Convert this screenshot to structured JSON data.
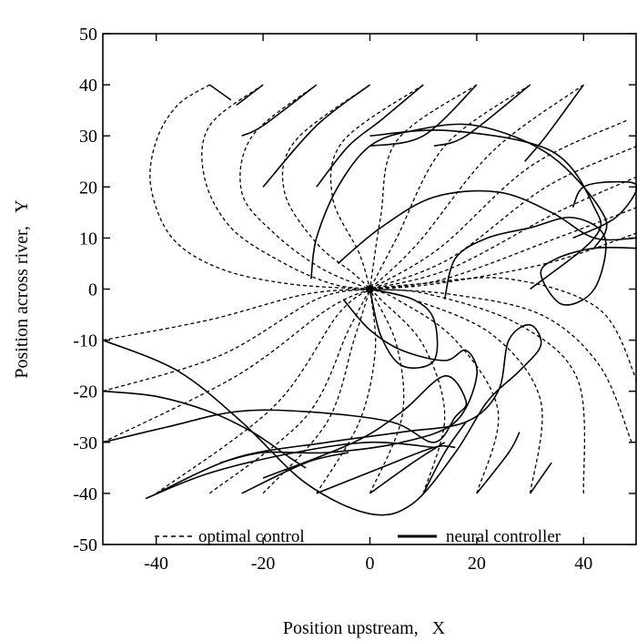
{
  "chart_data": {
    "type": "line",
    "title": "",
    "xlabel": "Position upstream,   X",
    "ylabel": "Position across river,   Y",
    "xlim": [
      -50,
      50
    ],
    "ylim": [
      -50,
      50
    ],
    "x_ticks": [
      "-40",
      "-20",
      "0",
      "20",
      "40"
    ],
    "x_tick_values": [
      -40,
      -20,
      0,
      20,
      40
    ],
    "y_ticks": [
      "50",
      "40",
      "30",
      "20",
      "10",
      "0",
      "-10",
      "-20",
      "-30",
      "-40",
      "-50"
    ],
    "y_tick_values": [
      50,
      40,
      30,
      20,
      10,
      0,
      -10,
      -20,
      -30,
      -40,
      -50
    ],
    "legend_placement": "bottom",
    "legend": [
      {
        "label": "optimal control",
        "style": "dashed"
      },
      {
        "label": "neural controller",
        "style": "solid"
      }
    ],
    "target_point": {
      "x": 0,
      "y": 0
    },
    "series": [
      {
        "name": "optimal control",
        "style": "dashed",
        "trajectories": [
          [
            [
              -30,
              40
            ],
            [
              -36,
              36
            ],
            [
              -40,
              29
            ],
            [
              -41,
              20
            ],
            [
              -37,
              10
            ],
            [
              -28,
              4
            ],
            [
              -15,
              1
            ],
            [
              0,
              0
            ]
          ],
          [
            [
              -20,
              40
            ],
            [
              -30,
              32
            ],
            [
              -31,
              22
            ],
            [
              -26,
              12
            ],
            [
              -16,
              5
            ],
            [
              -7,
              1
            ],
            [
              0,
              0
            ]
          ],
          [
            [
              -10,
              40
            ],
            [
              -22,
              30
            ],
            [
              -24,
              19
            ],
            [
              -18,
              11
            ],
            [
              -9,
              4
            ],
            [
              0,
              0
            ]
          ],
          [
            [
              0,
              40
            ],
            [
              -14,
              29
            ],
            [
              -16,
              19
            ],
            [
              -10,
              9
            ],
            [
              -3,
              3
            ],
            [
              0,
              0
            ]
          ],
          [
            [
              10,
              40
            ],
            [
              -5,
              29
            ],
            [
              -7,
              18
            ],
            [
              -2,
              7
            ],
            [
              0,
              0
            ]
          ],
          [
            [
              20,
              40
            ],
            [
              5,
              29
            ],
            [
              2,
              14
            ],
            [
              0,
              0
            ]
          ],
          [
            [
              30,
              40
            ],
            [
              14,
              28
            ],
            [
              5,
              10
            ],
            [
              0,
              0
            ]
          ],
          [
            [
              40,
              40
            ],
            [
              23,
              27
            ],
            [
              9,
              9
            ],
            [
              0,
              0
            ]
          ],
          [
            [
              48,
              33
            ],
            [
              30,
              24
            ],
            [
              13,
              8
            ],
            [
              0,
              0
            ]
          ],
          [
            [
              50,
              28
            ],
            [
              33,
              20
            ],
            [
              15,
              6
            ],
            [
              0,
              0
            ]
          ],
          [
            [
              50,
              22
            ],
            [
              35,
              15
            ],
            [
              15,
              4
            ],
            [
              0,
              0
            ]
          ],
          [
            [
              50,
              16
            ],
            [
              35,
              10
            ],
            [
              14,
              2
            ],
            [
              0,
              0
            ]
          ],
          [
            [
              50,
              11
            ],
            [
              33,
              5
            ],
            [
              12,
              1
            ],
            [
              0,
              0
            ]
          ],
          [
            [
              50,
              -18
            ],
            [
              43,
              -4
            ],
            [
              26,
              2
            ],
            [
              9,
              1
            ],
            [
              0,
              0
            ]
          ],
          [
            [
              49,
              -30
            ],
            [
              43,
              -15
            ],
            [
              32,
              -5
            ],
            [
              15,
              -1
            ],
            [
              0,
              0
            ]
          ],
          [
            [
              40,
              -40
            ],
            [
              39,
              -18
            ],
            [
              28,
              -7
            ],
            [
              11,
              -1
            ],
            [
              0,
              0
            ]
          ],
          [
            [
              30,
              -40
            ],
            [
              32,
              -22
            ],
            [
              23,
              -9
            ],
            [
              8,
              -2
            ],
            [
              0,
              0
            ]
          ],
          [
            [
              20,
              -40
            ],
            [
              24,
              -24
            ],
            [
              16,
              -10
            ],
            [
              5,
              -2
            ],
            [
              0,
              0
            ]
          ],
          [
            [
              10,
              -40
            ],
            [
              14,
              -25
            ],
            [
              10,
              -11
            ],
            [
              2,
              -2
            ],
            [
              0,
              0
            ]
          ],
          [
            [
              0,
              -40
            ],
            [
              6,
              -25
            ],
            [
              5,
              -11
            ],
            [
              0,
              0
            ]
          ],
          [
            [
              -10,
              -40
            ],
            [
              -2,
              -26
            ],
            [
              1,
              -12
            ],
            [
              0,
              0
            ]
          ],
          [
            [
              -20,
              -40
            ],
            [
              -8,
              -26
            ],
            [
              -3,
              -10
            ],
            [
              0,
              0
            ]
          ],
          [
            [
              -30,
              -40
            ],
            [
              -12,
              -25
            ],
            [
              -4,
              -8
            ],
            [
              0,
              0
            ]
          ],
          [
            [
              -40,
              -40
            ],
            [
              -18,
              -23
            ],
            [
              -6,
              -5
            ],
            [
              0,
              0
            ]
          ],
          [
            [
              -50,
              -30
            ],
            [
              -25,
              -17
            ],
            [
              -8,
              -4
            ],
            [
              0,
              0
            ]
          ],
          [
            [
              -50,
              -20
            ],
            [
              -28,
              -13
            ],
            [
              -10,
              -2
            ],
            [
              0,
              0
            ]
          ],
          [
            [
              -50,
              -10
            ],
            [
              -30,
              -6
            ],
            [
              -12,
              -1
            ],
            [
              0,
              0
            ]
          ]
        ]
      },
      {
        "name": "neural controller",
        "style": "solid",
        "trajectories": [
          [
            [
              -30,
              40
            ],
            [
              -26,
              37
            ]
          ],
          [
            [
              -20,
              40
            ],
            [
              -25,
              36
            ]
          ],
          [
            [
              -10,
              40
            ],
            [
              -20,
              32
            ],
            [
              -24,
              30
            ]
          ],
          [
            [
              0,
              40
            ],
            [
              -10,
              32
            ],
            [
              -20,
              20
            ]
          ],
          [
            [
              10,
              40
            ],
            [
              2,
              33
            ],
            [
              -4,
              28
            ],
            [
              -10,
              20
            ]
          ],
          [
            [
              20,
              40
            ],
            [
              10,
              30
            ],
            [
              0,
              28
            ]
          ],
          [
            [
              30,
              40
            ],
            [
              18,
              30
            ],
            [
              12,
              28
            ]
          ],
          [
            [
              40,
              40
            ],
            [
              33,
              30
            ],
            [
              29,
              25
            ]
          ],
          [
            [
              0,
              30
            ],
            [
              15,
              31
            ],
            [
              34,
              27
            ],
            [
              42,
              16
            ],
            [
              42,
              10
            ],
            [
              30,
              0
            ]
          ],
          [
            [
              -11,
              2
            ],
            [
              -10,
              10
            ],
            [
              -6,
              20
            ],
            [
              0,
              28
            ],
            [
              8,
              31
            ],
            [
              20,
              32
            ],
            [
              34,
              26
            ],
            [
              44,
              14
            ],
            [
              42,
              8
            ]
          ],
          [
            [
              -6,
              5
            ],
            [
              2,
              12
            ],
            [
              12,
              18
            ],
            [
              24,
              19
            ],
            [
              34,
              15
            ],
            [
              42,
              10
            ],
            [
              50,
              10
            ]
          ],
          [
            [
              14,
              -2
            ],
            [
              16,
              6
            ],
            [
              22,
              10
            ],
            [
              30,
              12
            ],
            [
              38,
              14
            ],
            [
              44,
              10
            ],
            [
              42,
              0
            ],
            [
              36,
              -3
            ],
            [
              32,
              3
            ],
            [
              35,
              6
            ],
            [
              42,
              8
            ],
            [
              50,
              8
            ]
          ],
          [
            [
              38,
              10
            ],
            [
              46,
              14
            ],
            [
              50,
              20
            ],
            [
              46,
              21
            ],
            [
              40,
              20
            ],
            [
              38,
              16
            ]
          ],
          [
            [
              0,
              0
            ],
            [
              8,
              -2
            ],
            [
              12,
              -6
            ],
            [
              12,
              -14
            ],
            [
              6,
              -15
            ],
            [
              2,
              -9
            ],
            [
              0,
              0
            ]
          ],
          [
            [
              -5,
              -2
            ],
            [
              0,
              -8
            ],
            [
              6,
              -12
            ],
            [
              14,
              -14
            ],
            [
              18,
              -12
            ],
            [
              20,
              -17
            ],
            [
              16,
              -26
            ],
            [
              6,
              -30
            ],
            [
              -8,
              -32
            ],
            [
              -20,
              -32
            ],
            [
              -28,
              -34
            ]
          ],
          [
            [
              -50,
              -10
            ],
            [
              -36,
              -16
            ],
            [
              -24,
              -26
            ],
            [
              -12,
              -38
            ],
            [
              0,
              -44
            ],
            [
              8,
              -42
            ],
            [
              16,
              -32
            ],
            [
              22,
              -22
            ],
            [
              28,
              -16
            ],
            [
              32,
              -11
            ],
            [
              30,
              -7
            ],
            [
              26,
              -10
            ],
            [
              24,
              -20
            ],
            [
              18,
              -26
            ],
            [
              6,
              -28
            ],
            [
              -8,
              -30
            ],
            [
              -25,
              -33
            ],
            [
              -40,
              -40
            ]
          ],
          [
            [
              -50,
              -20
            ],
            [
              -40,
              -21
            ],
            [
              -30,
              -24
            ],
            [
              -22,
              -28
            ],
            [
              -15,
              -33
            ],
            [
              -12,
              -35
            ]
          ],
          [
            [
              -50,
              -30
            ],
            [
              -38,
              -27
            ],
            [
              -25,
              -24
            ],
            [
              -12,
              -24
            ],
            [
              4,
              -26
            ],
            [
              12,
              -30
            ],
            [
              16,
              -25
            ],
            [
              18,
              -22
            ],
            [
              14,
              -17
            ],
            [
              6,
              -24
            ],
            [
              -3,
              -30
            ],
            [
              -20,
              -37
            ]
          ],
          [
            [
              -42,
              -41
            ],
            [
              -30,
              -36
            ],
            [
              -14,
              -32
            ],
            [
              0,
              -30
            ],
            [
              12,
              -31
            ]
          ],
          [
            [
              -24,
              -40
            ],
            [
              -12,
              -34
            ],
            [
              -4,
              -32
            ]
          ],
          [
            [
              -10,
              -40
            ],
            [
              2,
              -35
            ],
            [
              12,
              -31
            ],
            [
              16,
              -31
            ]
          ],
          [
            [
              0,
              -40
            ],
            [
              8,
              -34
            ],
            [
              14,
              -30
            ]
          ],
          [
            [
              10,
              -40
            ],
            [
              14,
              -32
            ],
            [
              18,
              -26
            ]
          ],
          [
            [
              20,
              -40
            ],
            [
              26,
              -32
            ],
            [
              28,
              -28
            ]
          ],
          [
            [
              30,
              -40
            ],
            [
              34,
              -34
            ]
          ]
        ]
      }
    ]
  }
}
